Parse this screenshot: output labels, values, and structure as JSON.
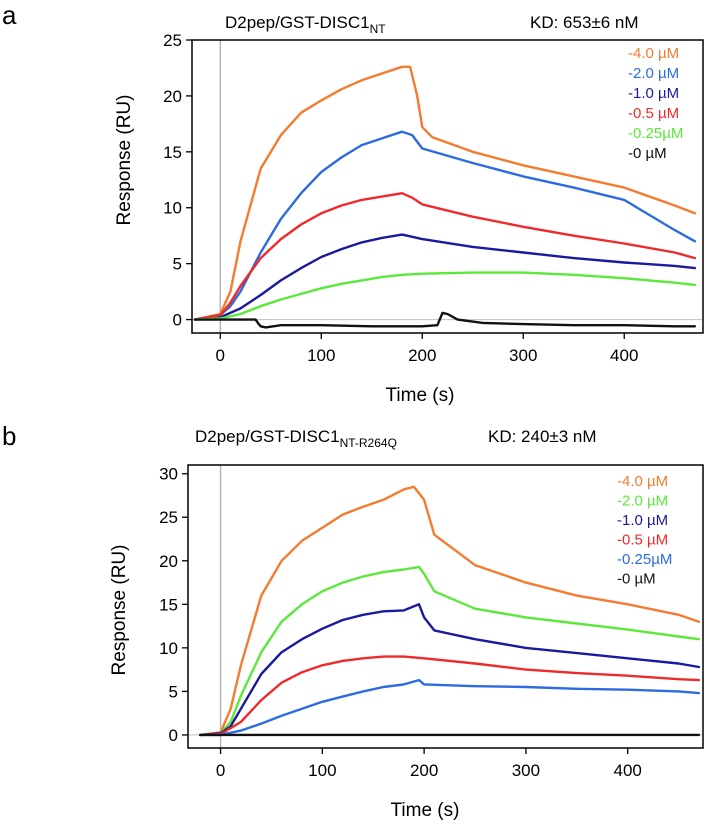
{
  "chart_data": [
    {
      "type": "line",
      "panel_label": "a",
      "title_main": "D2pep/GST-DISC1",
      "title_sub": "NT",
      "kd_text": "KD: 653±6 nM",
      "xlabel": "Time (s)",
      "ylabel": "Response (RU)",
      "xlim": [
        -28,
        478
      ],
      "ylim": [
        -1.2,
        25
      ],
      "xticks": [
        "0",
        "100",
        "200",
        "300",
        "400"
      ],
      "yticks": [
        "0",
        "5",
        "10",
        "15",
        "20",
        "25"
      ],
      "legend_position": "top-right",
      "injection_line_x": 0,
      "series": [
        {
          "name": "-4.0 µM",
          "color": "#f47b30",
          "x": [
            -25,
            0,
            10,
            20,
            40,
            60,
            80,
            100,
            120,
            140,
            160,
            180,
            188,
            195,
            200,
            210,
            250,
            300,
            350,
            400,
            450,
            470
          ],
          "y": [
            0,
            0.5,
            2.5,
            7,
            13.5,
            16.5,
            18.5,
            19.6,
            20.6,
            21.4,
            22,
            22.6,
            22.6,
            20,
            17.2,
            16.3,
            15,
            13.8,
            12.8,
            11.8,
            10.2,
            9.5
          ]
        },
        {
          "name": "-2.0 µM",
          "color": "#2d6be0",
          "x": [
            -25,
            0,
            10,
            20,
            40,
            60,
            80,
            100,
            120,
            140,
            160,
            180,
            190,
            200,
            250,
            300,
            350,
            400,
            450,
            470
          ],
          "y": [
            0,
            0.4,
            1.2,
            2.5,
            6,
            9,
            11.3,
            13.2,
            14.5,
            15.6,
            16.2,
            16.8,
            16.5,
            15.3,
            14,
            12.8,
            11.8,
            10.7,
            8,
            7
          ]
        },
        {
          "name": "-1.0 µM",
          "color": "#1a1a9e",
          "x": [
            -25,
            0,
            20,
            40,
            60,
            80,
            100,
            120,
            140,
            160,
            180,
            200,
            250,
            300,
            350,
            400,
            450,
            470
          ],
          "y": [
            0,
            0.2,
            1,
            2.2,
            3.5,
            4.6,
            5.6,
            6.3,
            6.9,
            7.3,
            7.6,
            7.2,
            6.5,
            6,
            5.5,
            5.1,
            4.8,
            4.6
          ]
        },
        {
          "name": "-0.5 µM",
          "color": "#ee2a2a",
          "x": [
            -25,
            0,
            10,
            20,
            40,
            60,
            80,
            100,
            120,
            140,
            160,
            180,
            190,
            200,
            250,
            300,
            350,
            400,
            450,
            470
          ],
          "y": [
            0,
            0.4,
            1.5,
            3,
            5.5,
            7.2,
            8.5,
            9.5,
            10.2,
            10.7,
            11,
            11.3,
            10.9,
            10.3,
            9.2,
            8.3,
            7.5,
            6.8,
            6,
            5.5
          ]
        },
        {
          "name": "-0.25µM",
          "color": "#5ce83a",
          "x": [
            -25,
            0,
            20,
            40,
            60,
            80,
            100,
            120,
            140,
            160,
            180,
            200,
            250,
            300,
            350,
            400,
            450,
            470
          ],
          "y": [
            0,
            0.1,
            0.5,
            1.2,
            1.8,
            2.3,
            2.8,
            3.2,
            3.5,
            3.8,
            4,
            4.1,
            4.2,
            4.2,
            4,
            3.7,
            3.3,
            3.1
          ]
        },
        {
          "name": "-0 µM",
          "color": "#111111",
          "x": [
            -25,
            0,
            20,
            35,
            38,
            40,
            45,
            60,
            100,
            150,
            200,
            215,
            220,
            225,
            235,
            260,
            300,
            350,
            400,
            450,
            470
          ],
          "y": [
            0,
            0,
            0,
            0,
            -0.4,
            -0.6,
            -0.7,
            -0.5,
            -0.5,
            -0.6,
            -0.6,
            -0.5,
            0.6,
            0.5,
            0,
            -0.3,
            -0.4,
            -0.5,
            -0.5,
            -0.6,
            -0.6
          ]
        }
      ]
    },
    {
      "type": "line",
      "panel_label": "b",
      "title_main": "D2pep/GST-DISC1",
      "title_sub": "NT-R264Q",
      "kd_text": "KD: 240±3 nM",
      "xlabel": "Time (s)",
      "ylabel": "Response (RU)",
      "xlim": [
        -32,
        474
      ],
      "ylim": [
        -1.5,
        31
      ],
      "xticks": [
        "0",
        "100",
        "200",
        "300",
        "400"
      ],
      "yticks": [
        "0",
        "5",
        "10",
        "15",
        "20",
        "25",
        "30"
      ],
      "legend_position": "top-right",
      "injection_line_x": 0,
      "series": [
        {
          "name": "-4.0 µM",
          "color": "#f47b30",
          "x": [
            -20,
            0,
            10,
            20,
            40,
            60,
            80,
            100,
            120,
            140,
            160,
            180,
            190,
            200,
            210,
            250,
            300,
            350,
            400,
            450,
            470
          ],
          "y": [
            0,
            0.3,
            3,
            8,
            16,
            20,
            22.3,
            23.8,
            25.3,
            26.2,
            27,
            28.2,
            28.5,
            27,
            23,
            19.5,
            17.5,
            16,
            15,
            13.8,
            13
          ]
        },
        {
          "name": "-2.0 µM",
          "color": "#5ce83a",
          "x": [
            -20,
            0,
            10,
            20,
            40,
            60,
            80,
            100,
            120,
            140,
            160,
            180,
            195,
            200,
            210,
            250,
            300,
            350,
            400,
            450,
            470
          ],
          "y": [
            0,
            0.2,
            1.5,
            4.5,
            9.5,
            13,
            15,
            16.5,
            17.5,
            18.2,
            18.7,
            19,
            19.3,
            18.5,
            16.5,
            14.5,
            13.5,
            12.8,
            12.1,
            11.3,
            11
          ]
        },
        {
          "name": "-1.0 µM",
          "color": "#1a1a9e",
          "x": [
            -20,
            0,
            10,
            20,
            40,
            60,
            80,
            100,
            120,
            140,
            160,
            180,
            195,
            200,
            210,
            250,
            300,
            350,
            400,
            450,
            470
          ],
          "y": [
            0,
            0.2,
            1,
            3,
            7,
            9.5,
            11,
            12.2,
            13.2,
            13.8,
            14.2,
            14.3,
            15,
            13.5,
            12,
            11,
            10,
            9.4,
            8.8,
            8.2,
            7.8
          ]
        },
        {
          "name": "-0.5 µM",
          "color": "#ee2a2a",
          "x": [
            -20,
            0,
            20,
            40,
            60,
            80,
            100,
            120,
            140,
            160,
            180,
            200,
            250,
            300,
            350,
            400,
            450,
            470
          ],
          "y": [
            0,
            0.1,
            1.5,
            4,
            6,
            7.2,
            8,
            8.5,
            8.8,
            9,
            9,
            8.8,
            8.2,
            7.5,
            7.1,
            6.8,
            6.4,
            6.3
          ]
        },
        {
          "name": "-0.25µM",
          "color": "#2d6be0",
          "x": [
            -20,
            0,
            20,
            40,
            60,
            80,
            100,
            120,
            140,
            160,
            180,
            195,
            200,
            250,
            300,
            350,
            400,
            450,
            470
          ],
          "y": [
            0,
            0,
            0.5,
            1.3,
            2.2,
            3,
            3.8,
            4.4,
            5,
            5.5,
            5.8,
            6.3,
            5.8,
            5.6,
            5.5,
            5.3,
            5.2,
            5,
            4.8
          ]
        },
        {
          "name": "-0 µM",
          "color": "#111111",
          "x": [
            -20,
            0,
            100,
            200,
            300,
            400,
            470
          ],
          "y": [
            0,
            0,
            0,
            0,
            0,
            0,
            0
          ]
        }
      ]
    }
  ]
}
